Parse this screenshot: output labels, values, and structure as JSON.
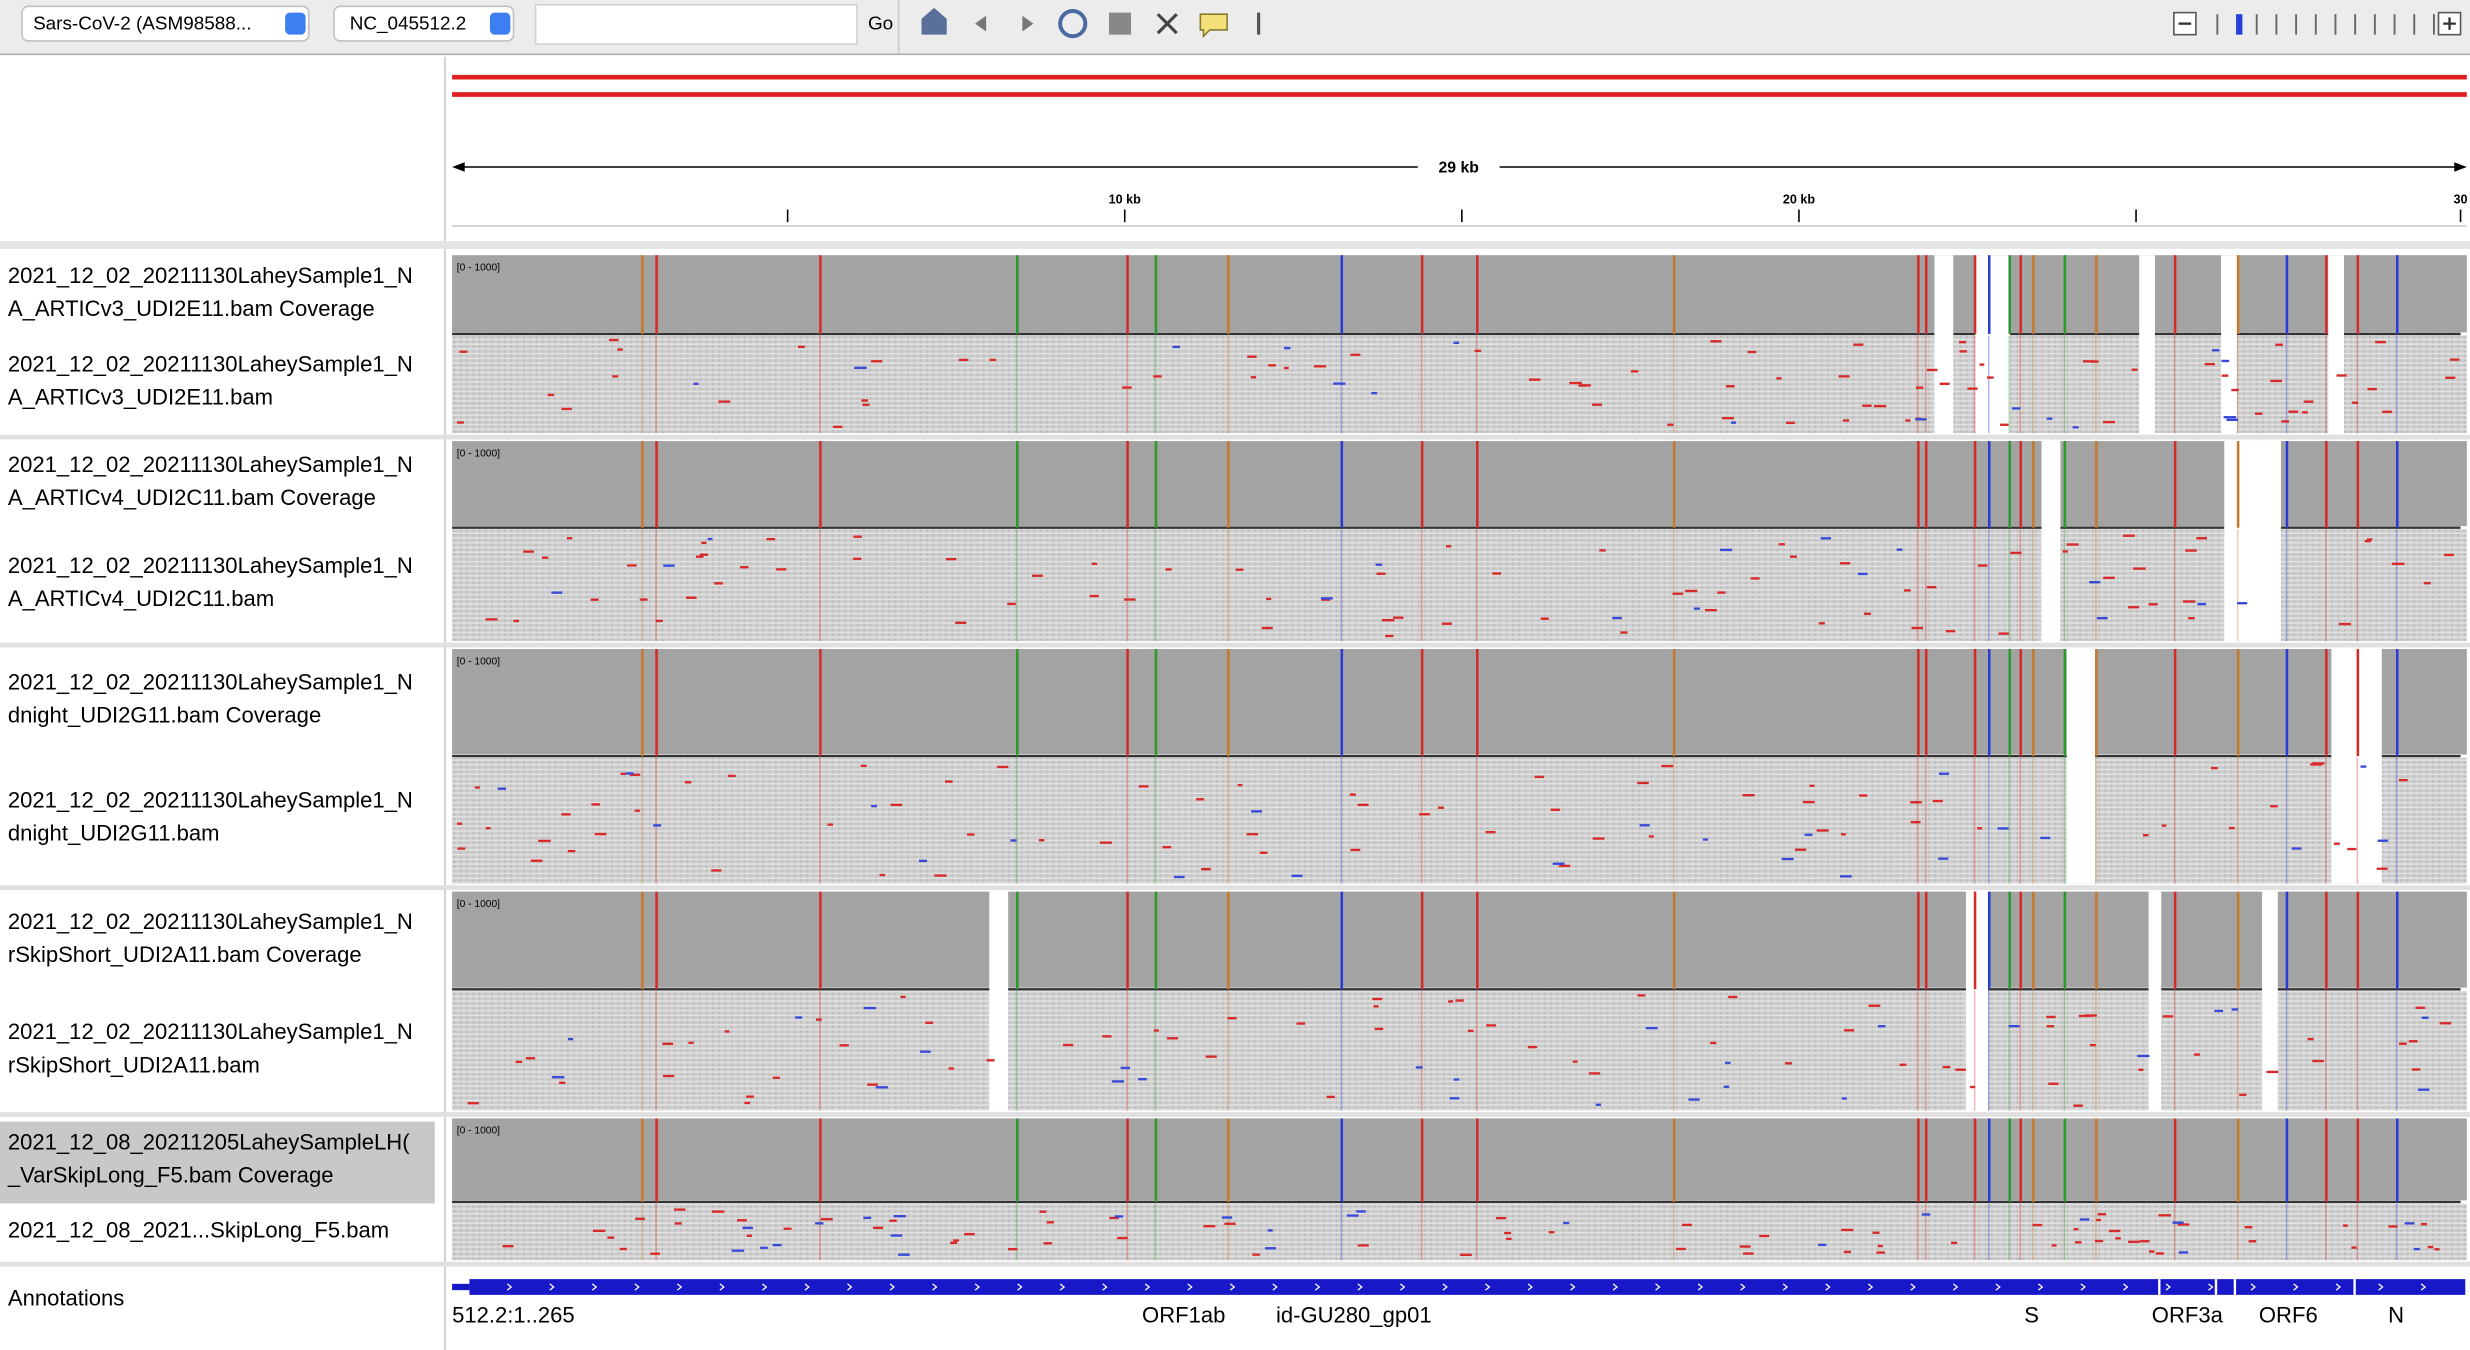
{
  "toolbar": {
    "genome": "Sars-CoV-2 (ASM98588...",
    "chromosome": "NC_045512.2",
    "go": "Go"
  },
  "ruler": {
    "span": "29 kb",
    "ticks": [
      "10 kb",
      "20 kb",
      "30"
    ]
  },
  "tracks": [
    {
      "coverage_label": [
        "2021_12_02_20211130LaheySample1_N",
        "A_ARTICv3_UDI2E11.bam Coverage"
      ],
      "range": "[0 - 1000]",
      "reads_label": [
        "2021_12_02_20211130LaheySample1_N",
        "A_ARTICv3_UDI2E11.bam"
      ]
    },
    {
      "coverage_label": [
        "2021_12_02_20211130LaheySample1_N",
        "A_ARTICv4_UDI2C11.bam Coverage"
      ],
      "range": "[0 - 1000]",
      "reads_label": [
        "2021_12_02_20211130LaheySample1_N",
        "A_ARTICv4_UDI2C11.bam"
      ]
    },
    {
      "coverage_label": [
        "2021_12_02_20211130LaheySample1_N",
        "dnight_UDI2G11.bam Coverage"
      ],
      "range": "[0 - 1000]",
      "reads_label": [
        "2021_12_02_20211130LaheySample1_N",
        "dnight_UDI2G11.bam"
      ]
    },
    {
      "coverage_label": [
        "2021_12_02_20211130LaheySample1_N",
        "rSkipShort_UDI2A11.bam Coverage"
      ],
      "range": "[0 - 1000]",
      "reads_label": [
        "2021_12_02_20211130LaheySample1_N",
        "rSkipShort_UDI2A11.bam"
      ]
    },
    {
      "coverage_label": [
        "2021_12_08_20211205LaheySampleLH(",
        "_VarSkipLong_F5.bam Coverage"
      ],
      "range": "[0 - 1000]",
      "reads_label": [
        "2021_12_08_2021...SkipLong_F5.bam"
      ]
    }
  ],
  "annotations": {
    "label": "Annotations",
    "features": [
      "512.2:1..265",
      "ORF1ab",
      "id-GU280_gp01",
      "S",
      "ORF3a",
      "ORF6",
      "N"
    ]
  }
}
